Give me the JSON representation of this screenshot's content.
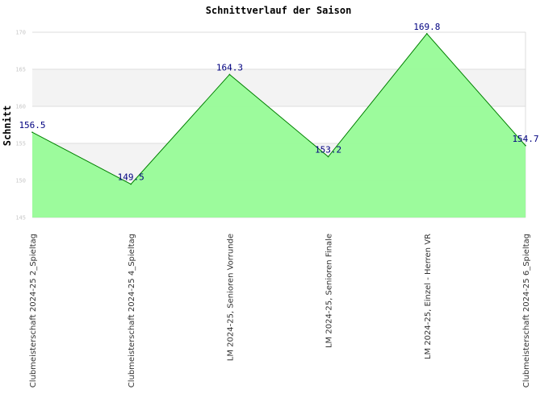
{
  "chart_data": {
    "type": "area",
    "title": "Schnittverlauf der Saison",
    "xlabel": "",
    "ylabel": "Schnitt",
    "ylim": [
      145,
      170
    ],
    "yticks": [
      145,
      150,
      155,
      160,
      165,
      170
    ],
    "ytick_labels": [
      "145",
      "150",
      "155",
      "160",
      "165",
      "170"
    ],
    "categories": [
      "Clubmeisterschaft 2024-25  2_Spieltag",
      "Clubmeisterschaft 2024-25  4_Spieltag",
      "LM 2024-25, Senioren Vorrunde",
      "LM 2024-25, Senioren Finale",
      "LM 2024-25, Einzel - Herren VR",
      "Clubmeisterschaft 2024-25  6_Spieltag"
    ],
    "series": [
      {
        "values": [
          156.5,
          149.5,
          164.3,
          153.2,
          169.8,
          154.7
        ],
        "labels": [
          "156.5",
          "149.5",
          "164.3",
          "153.2",
          "169.8",
          "154.7"
        ]
      }
    ],
    "grid": true,
    "legend": "none",
    "colors": {
      "fill": "#98fb98",
      "line": "#008000",
      "band": "#f3f3f3",
      "grid": "#dcdcdc",
      "label": "#000080"
    }
  }
}
